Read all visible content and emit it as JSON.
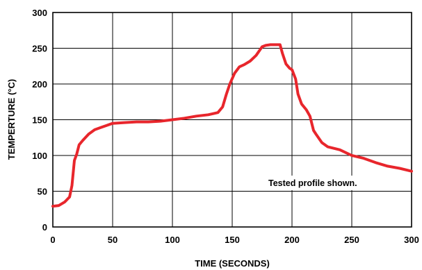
{
  "chart_data": {
    "type": "line",
    "title": "",
    "xlabel": "TIME (SECONDS)",
    "ylabel": "TEMPERTURE (°C)",
    "xlim": [
      0,
      300
    ],
    "ylim": [
      0,
      300
    ],
    "x_ticks": [
      0,
      50,
      100,
      150,
      200,
      250,
      300
    ],
    "y_ticks": [
      0,
      50,
      100,
      150,
      200,
      250,
      300
    ],
    "x_tick_labels": [
      "0",
      "50",
      "100",
      "150",
      "200",
      "250",
      "300"
    ],
    "y_tick_labels": [
      "0",
      "50",
      "100",
      "150",
      "200",
      "250",
      "300"
    ],
    "grid": true,
    "legend": "none",
    "annotation": "Tested profile shown.",
    "series": [
      {
        "color": "#e8262c",
        "x": [
          0,
          5,
          10,
          14,
          16,
          18,
          20,
          22,
          25,
          30,
          35,
          40,
          45,
          50,
          60,
          70,
          80,
          90,
          100,
          110,
          120,
          130,
          138,
          142,
          145,
          148,
          152,
          156,
          160,
          165,
          170,
          175,
          178,
          182,
          186,
          190,
          192,
          195,
          198,
          200,
          203,
          205,
          208,
          212,
          215,
          218,
          220,
          225,
          230,
          240,
          250,
          260,
          270,
          280,
          290,
          300
        ],
        "y": [
          29,
          30,
          35,
          42,
          58,
          93,
          102,
          115,
          121,
          130,
          136,
          139,
          142,
          145,
          146,
          147,
          147,
          148,
          150,
          152,
          155,
          157,
          160,
          168,
          185,
          200,
          215,
          224,
          227,
          232,
          240,
          252,
          254,
          255,
          255,
          255,
          243,
          228,
          222,
          220,
          207,
          186,
          172,
          164,
          155,
          135,
          130,
          118,
          112,
          108,
          100,
          96,
          90,
          85,
          82,
          78
        ]
      }
    ]
  }
}
